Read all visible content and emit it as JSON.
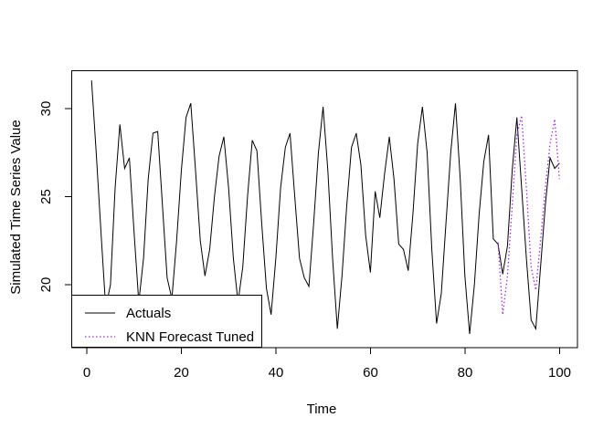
{
  "chart_data": {
    "type": "line",
    "title": "",
    "xlabel": "Time",
    "ylabel": "Simulated Time Series Value",
    "xlim": [
      0,
      104
    ],
    "ylim": [
      16.6,
      32.2
    ],
    "x_ticks": [
      0,
      20,
      40,
      60,
      80,
      100
    ],
    "y_ticks": [
      20,
      25,
      30
    ],
    "grid": false,
    "legend_position": "bottomleft",
    "series": [
      {
        "name": "Actuals",
        "color": "#000000",
        "style": "solid",
        "x_start": 1,
        "x_step": 1,
        "values": [
          31.6,
          27.5,
          23.0,
          18.7,
          20.0,
          25.5,
          29.1,
          26.6,
          27.2,
          23.0,
          19.0,
          21.5,
          26.0,
          28.6,
          28.7,
          24.5,
          20.4,
          19.2,
          22.5,
          26.5,
          29.5,
          30.3,
          26.5,
          22.5,
          20.5,
          22.0,
          25.0,
          27.3,
          28.4,
          25.5,
          21.5,
          19.0,
          21.0,
          25.0,
          28.2,
          27.6,
          23.5,
          19.8,
          18.3,
          21.5,
          25.5,
          27.8,
          28.6,
          25.0,
          21.5,
          20.4,
          19.9,
          23.5,
          27.5,
          30.1,
          26.5,
          21.5,
          17.5,
          20.5,
          24.5,
          27.8,
          28.6,
          26.8,
          22.8,
          20.7,
          25.3,
          23.8,
          26.3,
          28.4,
          26.0,
          22.3,
          22.0,
          20.8,
          24.0,
          28.0,
          30.1,
          27.5,
          22.0,
          17.8,
          19.5,
          23.5,
          27.5,
          30.3,
          26.0,
          20.5,
          17.2,
          20.0,
          24.0,
          27.0,
          28.5,
          22.6,
          22.3,
          20.6,
          22.2,
          26.5,
          29.5,
          25.5,
          21.5,
          18.0,
          17.5,
          21.0,
          24.5,
          27.2,
          26.6,
          26.9
        ]
      },
      {
        "name": "KNN Forecast Tuned",
        "color": "#A020F0",
        "style": "dotted",
        "x_start": 87,
        "x_step": 1,
        "values": [
          22.4,
          18.3,
          20.5,
          24.5,
          28.5,
          29.6,
          25.5,
          21.0,
          19.7,
          22.5,
          25.5,
          28.0,
          29.4,
          26.0
        ]
      }
    ]
  },
  "legend": {
    "items": [
      {
        "label": "Actuals"
      },
      {
        "label": "KNN Forecast Tuned"
      }
    ]
  }
}
